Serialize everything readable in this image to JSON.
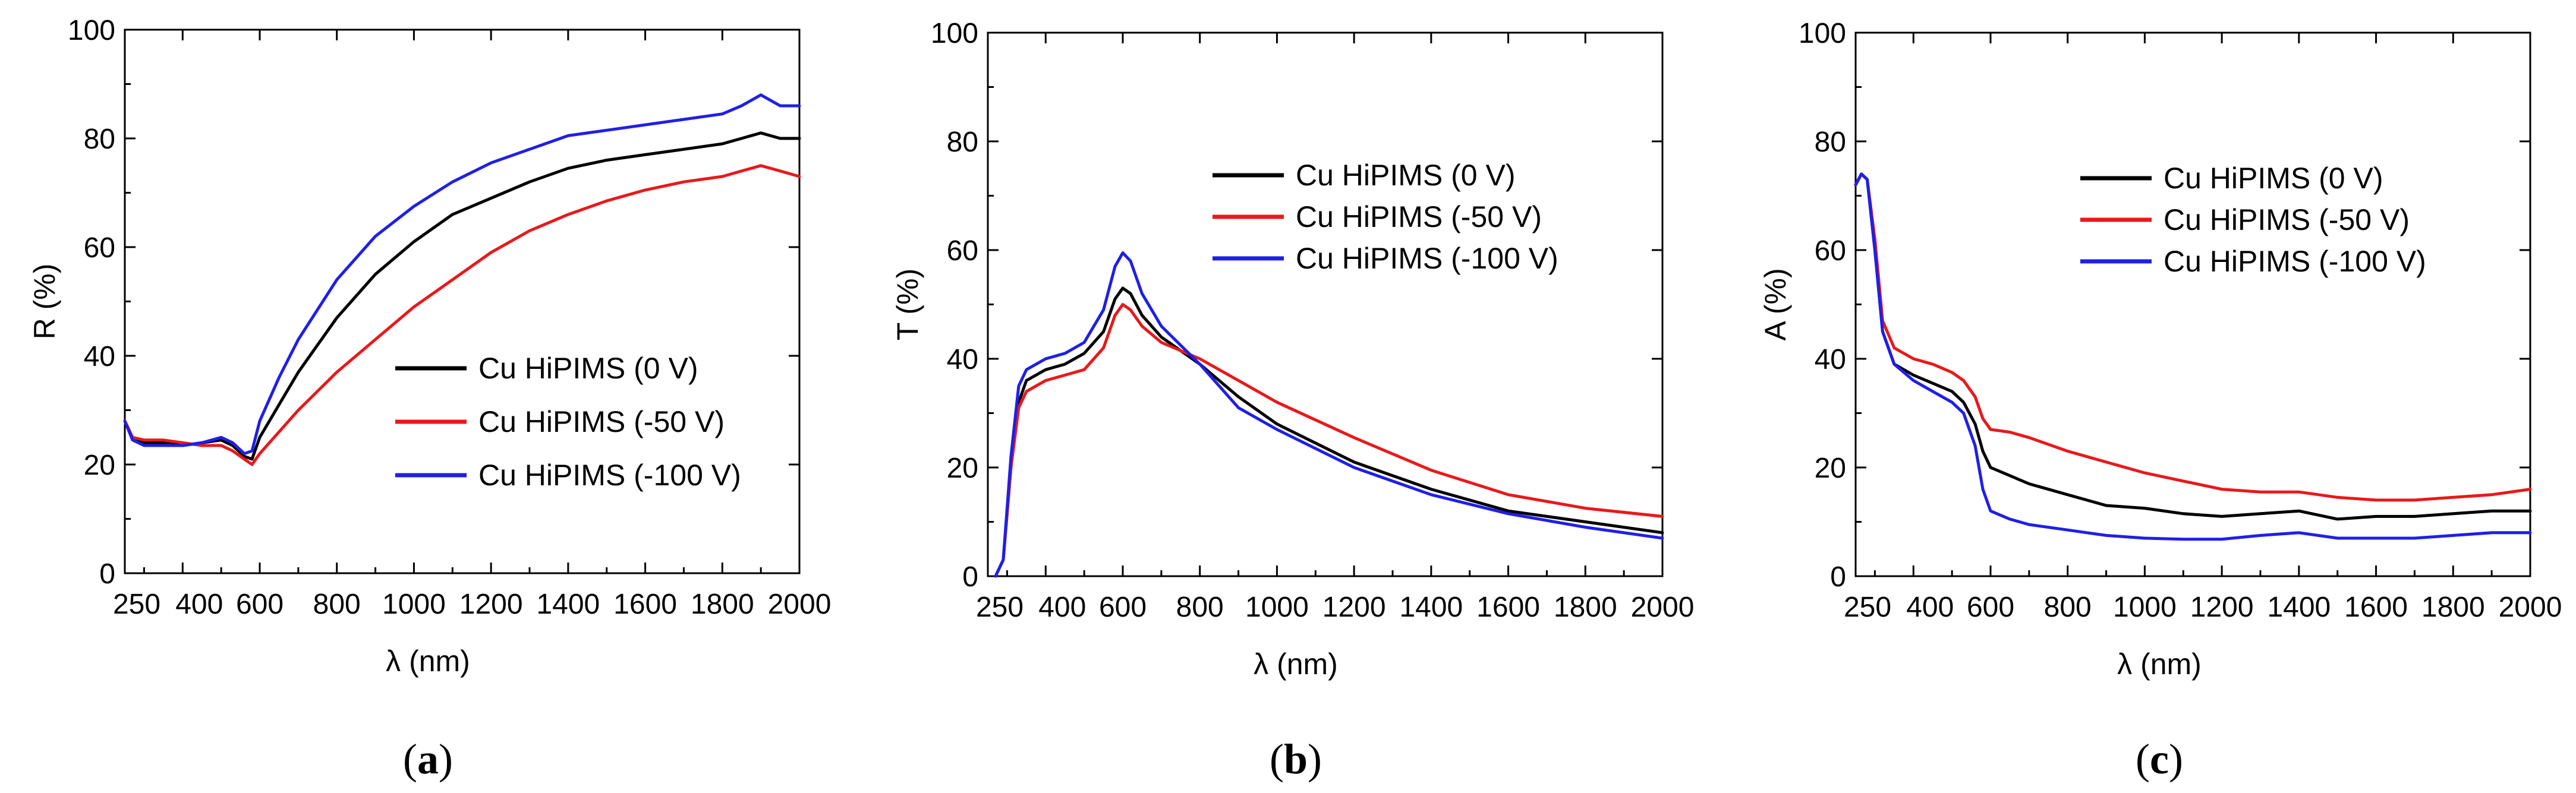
{
  "chart_data": [
    {
      "type": "line",
      "panel_label": "(a)",
      "panel_letter": "a",
      "xlabel": "λ (nm)",
      "ylabel": "R (%)",
      "xlim": [
        250,
        2000
      ],
      "ylim": [
        0,
        100
      ],
      "xticks": [
        250,
        400,
        600,
        800,
        1000,
        1200,
        1400,
        1600,
        1800,
        2000
      ],
      "yticks": [
        0,
        20,
        40,
        60,
        80,
        100
      ],
      "legend_position": "center-right",
      "series": [
        {
          "name": "Cu HiPIMS (0 V)",
          "color": "#000000",
          "x": [
            250,
            270,
            300,
            350,
            400,
            450,
            500,
            530,
            560,
            580,
            600,
            650,
            700,
            800,
            900,
            1000,
            1100,
            1200,
            1300,
            1400,
            1500,
            1600,
            1700,
            1800,
            1850,
            1900,
            1950,
            2000
          ],
          "y": [
            28,
            25,
            24,
            24,
            23.5,
            24,
            24.5,
            23.5,
            21.5,
            21,
            25,
            31,
            37,
            47,
            55,
            61,
            66,
            69,
            72,
            74.5,
            76,
            77,
            78,
            79,
            80,
            81,
            80,
            80
          ]
        },
        {
          "name": "Cu HiPIMS (-50 V)",
          "color": "#e8191b",
          "x": [
            250,
            270,
            300,
            350,
            400,
            450,
            500,
            530,
            560,
            580,
            600,
            650,
            700,
            800,
            900,
            1000,
            1100,
            1200,
            1300,
            1400,
            1500,
            1600,
            1700,
            1800,
            1850,
            1900,
            1950,
            2000
          ],
          "y": [
            28,
            25,
            24.5,
            24.5,
            24,
            23.5,
            23.5,
            22.5,
            21,
            20,
            22,
            26,
            30,
            37,
            43,
            49,
            54,
            59,
            63,
            66,
            68.5,
            70.5,
            72,
            73,
            74,
            75,
            74,
            73
          ]
        },
        {
          "name": "Cu HiPIMS (-100 V)",
          "color": "#1f1fe8",
          "x": [
            250,
            270,
            300,
            350,
            400,
            450,
            500,
            530,
            560,
            580,
            600,
            650,
            700,
            800,
            900,
            1000,
            1100,
            1200,
            1300,
            1400,
            1500,
            1600,
            1700,
            1800,
            1850,
            1900,
            1950,
            2000
          ],
          "y": [
            28,
            24.5,
            23.5,
            23.5,
            23.5,
            24,
            25,
            24,
            22,
            22.5,
            28,
            36,
            43,
            54,
            62,
            67.5,
            72,
            75.5,
            78,
            80.5,
            81.5,
            82.5,
            83.5,
            84.5,
            86,
            88,
            86,
            86
          ]
        }
      ]
    },
    {
      "type": "line",
      "panel_label": "(b)",
      "panel_letter": "b",
      "xlabel": "λ (nm)",
      "ylabel": "T (%)",
      "xlim": [
        250,
        2000
      ],
      "ylim": [
        0,
        100
      ],
      "xticks": [
        250,
        400,
        600,
        800,
        1000,
        1200,
        1400,
        1600,
        1800,
        2000
      ],
      "yticks": [
        0,
        20,
        40,
        60,
        80,
        100
      ],
      "legend_position": "top-right",
      "series": [
        {
          "name": "Cu HiPIMS (0 V)",
          "color": "#000000",
          "x": [
            270,
            290,
            310,
            330,
            350,
            400,
            450,
            500,
            550,
            580,
            600,
            620,
            650,
            700,
            800,
            900,
            1000,
            1200,
            1400,
            1600,
            1800,
            2000
          ],
          "y": [
            0,
            3,
            20,
            32,
            36,
            38,
            39,
            41,
            45,
            51,
            53,
            52,
            48,
            44,
            39,
            33,
            28,
            21,
            16,
            12,
            10,
            8
          ]
        },
        {
          "name": "Cu HiPIMS (-50 V)",
          "color": "#e8191b",
          "x": [
            270,
            290,
            310,
            330,
            350,
            400,
            450,
            500,
            550,
            580,
            600,
            620,
            650,
            700,
            800,
            900,
            1000,
            1200,
            1400,
            1600,
            1800,
            2000
          ],
          "y": [
            0,
            3,
            20,
            31,
            34,
            36,
            37,
            38,
            42,
            48,
            50,
            49,
            46,
            43,
            40,
            36,
            32,
            25.5,
            19.5,
            15,
            12.5,
            11
          ]
        },
        {
          "name": "Cu HiPIMS (-100 V)",
          "color": "#1f1fe8",
          "x": [
            270,
            290,
            310,
            330,
            350,
            400,
            450,
            500,
            550,
            580,
            600,
            620,
            650,
            700,
            800,
            900,
            1000,
            1200,
            1400,
            1600,
            1800,
            2000
          ],
          "y": [
            0,
            3,
            22,
            35,
            38,
            40,
            41,
            43,
            49,
            57,
            59.5,
            58,
            52,
            46,
            39,
            31,
            27,
            20,
            15,
            11.5,
            9,
            7
          ]
        }
      ]
    },
    {
      "type": "line",
      "panel_label": "(c)",
      "panel_letter": "c",
      "xlabel": "λ (nm)",
      "ylabel": "A (%)",
      "xlim": [
        250,
        2000
      ],
      "ylim": [
        0,
        100
      ],
      "xticks": [
        250,
        400,
        600,
        800,
        1000,
        1200,
        1400,
        1600,
        1800,
        2000
      ],
      "yticks": [
        0,
        20,
        40,
        60,
        80,
        100
      ],
      "legend_position": "top-right",
      "series": [
        {
          "name": "Cu HiPIMS (0 V)",
          "color": "#000000",
          "x": [
            250,
            265,
            280,
            300,
            320,
            350,
            400,
            450,
            500,
            530,
            560,
            580,
            600,
            650,
            700,
            800,
            850,
            900,
            1000,
            1100,
            1200,
            1300,
            1400,
            1500,
            1600,
            1700,
            1800,
            1900,
            2000
          ],
          "y": [
            72,
            74,
            73,
            60,
            45,
            39,
            37,
            35.5,
            34,
            32,
            28,
            23,
            20,
            18.5,
            17,
            15,
            14,
            13,
            12.5,
            11.5,
            11,
            11.5,
            12,
            10.5,
            11,
            11,
            11.5,
            12,
            12
          ]
        },
        {
          "name": "Cu HiPIMS (-50 V)",
          "color": "#e8191b",
          "x": [
            250,
            265,
            280,
            300,
            320,
            350,
            400,
            450,
            500,
            530,
            560,
            580,
            600,
            650,
            700,
            800,
            850,
            900,
            1000,
            1100,
            1200,
            1300,
            1400,
            1500,
            1600,
            1700,
            1800,
            1900,
            2000
          ],
          "y": [
            72,
            74,
            73,
            62,
            47,
            42,
            40,
            39,
            37.5,
            36,
            33,
            29,
            27,
            26.5,
            25.5,
            23,
            22,
            21,
            19,
            17.5,
            16,
            15.5,
            15.5,
            14.5,
            14,
            14,
            14.5,
            15,
            16
          ]
        },
        {
          "name": "Cu HiPIMS (-100 V)",
          "color": "#1f1fe8",
          "x": [
            250,
            265,
            280,
            300,
            320,
            350,
            400,
            450,
            500,
            530,
            560,
            580,
            600,
            650,
            700,
            800,
            850,
            900,
            1000,
            1100,
            1200,
            1300,
            1400,
            1500,
            1600,
            1700,
            1800,
            1900,
            2000
          ],
          "y": [
            72,
            74,
            73,
            60,
            45,
            39,
            36,
            34,
            32,
            30,
            24,
            16,
            12,
            10.5,
            9.5,
            8.5,
            8,
            7.5,
            7,
            6.8,
            6.8,
            7.5,
            8,
            7,
            7,
            7,
            7.5,
            8,
            8
          ]
        }
      ]
    }
  ]
}
